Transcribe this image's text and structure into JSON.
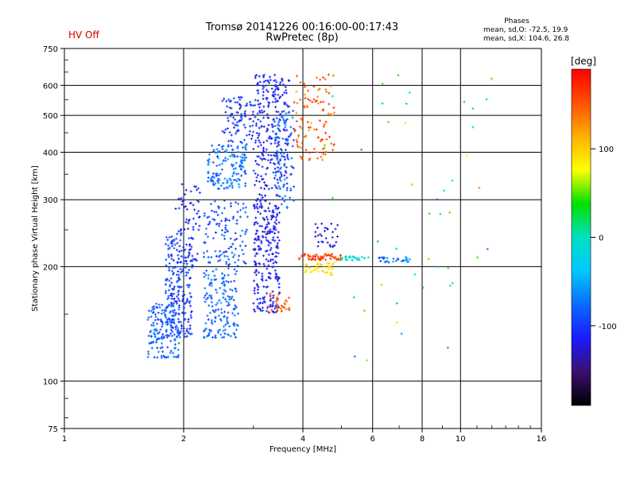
{
  "header": {
    "status": "HV Off",
    "title_line1": "Tromsø 20141226 00:16:00-00:17:43",
    "title_line2": "RwPretec (8p)"
  },
  "stats": {
    "title": "Phases",
    "line_o": "mean, sd,O: -72.5, 19.9",
    "line_x": "mean, sd,X: 104.6, 26.8"
  },
  "colorbar": {
    "unit": "[deg]",
    "colors": [
      "#000000",
      "#3c0f6e",
      "#1a1aff",
      "#0a6cff",
      "#00c8ff",
      "#00e0c0",
      "#00e000",
      "#ffff00",
      "#ffb000",
      "#ff5000",
      "#ff0000"
    ],
    "ticks": [
      {
        "value": -100,
        "label": "-100"
      },
      {
        "value": 0,
        "label": "0"
      },
      {
        "value": 100,
        "label": "100"
      }
    ],
    "range": [
      -190,
      190
    ]
  },
  "chart_data": {
    "type": "scatter",
    "xlabel": "Frequency [MHz]",
    "ylabel": "Stationary phase Virtual Height [km]",
    "xscale": "log",
    "yscale": "log",
    "xlim": [
      1,
      16
    ],
    "ylim": [
      75,
      750
    ],
    "grid": true,
    "xticks": [
      {
        "value": 1,
        "label": "1"
      },
      {
        "value": 2,
        "label": "2"
      },
      {
        "value": 4,
        "label": "4"
      },
      {
        "value": 6,
        "label": "6"
      },
      {
        "value": 8,
        "label": "8"
      },
      {
        "value": 10,
        "label": "10"
      },
      {
        "value": 16,
        "label": "16"
      }
    ],
    "yticks": [
      {
        "value": 75,
        "label": "75"
      },
      {
        "value": 100,
        "label": "100"
      },
      {
        "value": 200,
        "label": "200"
      },
      {
        "value": 300,
        "label": "300"
      },
      {
        "value": 400,
        "label": "400"
      },
      {
        "value": 500,
        "label": "500"
      },
      {
        "value": 600,
        "label": "600"
      },
      {
        "value": 750,
        "label": "750"
      }
    ],
    "clusters": [
      {
        "f": [
          1.62,
          1.95
        ],
        "h": [
          115,
          160
        ],
        "phase": -85,
        "spread": 25,
        "n": 160
      },
      {
        "f": [
          1.8,
          2.1
        ],
        "h": [
          130,
          240
        ],
        "phase": -95,
        "spread": 25,
        "n": 220
      },
      {
        "f": [
          1.9,
          2.2
        ],
        "h": [
          200,
          330
        ],
        "phase": -110,
        "spread": 20,
        "n": 70
      },
      {
        "f": [
          2.25,
          2.75
        ],
        "h": [
          130,
          200
        ],
        "phase": -80,
        "spread": 25,
        "n": 160
      },
      {
        "f": [
          2.25,
          2.9
        ],
        "h": [
          200,
          300
        ],
        "phase": -90,
        "spread": 25,
        "n": 120
      },
      {
        "f": [
          2.3,
          2.9
        ],
        "h": [
          320,
          420
        ],
        "phase": -75,
        "spread": 25,
        "n": 150
      },
      {
        "f": [
          2.5,
          3.0
        ],
        "h": [
          420,
          560
        ],
        "phase": -100,
        "spread": 25,
        "n": 90
      },
      {
        "f": [
          3.0,
          3.5
        ],
        "h": [
          150,
          310
        ],
        "phase": -115,
        "spread": 15,
        "n": 260
      },
      {
        "f": [
          3.0,
          3.7
        ],
        "h": [
          320,
          640
        ],
        "phase": -110,
        "spread": 20,
        "n": 260
      },
      {
        "f": [
          3.4,
          3.8
        ],
        "h": [
          280,
          520
        ],
        "phase": -80,
        "spread": 25,
        "n": 90
      },
      {
        "f": [
          3.25,
          3.7
        ],
        "h": [
          150,
          170
        ],
        "phase": 150,
        "spread": 20,
        "n": 30
      },
      {
        "f": [
          3.8,
          4.8
        ],
        "h": [
          380,
          640
        ],
        "phase": 145,
        "spread": 30,
        "n": 110
      },
      {
        "f": [
          3.9,
          5.0
        ],
        "h": [
          208,
          216
        ],
        "phase": 160,
        "spread": 25,
        "n": 60
      },
      {
        "f": [
          4.0,
          4.8
        ],
        "h": [
          190,
          205
        ],
        "phase": 90,
        "spread": 20,
        "n": 40
      },
      {
        "f": [
          4.3,
          4.9
        ],
        "h": [
          225,
          260
        ],
        "phase": -120,
        "spread": 20,
        "n": 30
      },
      {
        "f": [
          5.0,
          5.9
        ],
        "h": [
          208,
          213
        ],
        "phase": -10,
        "spread": 25,
        "n": 25
      },
      {
        "f": [
          6.2,
          7.6
        ],
        "h": [
          205,
          212
        ],
        "phase": -80,
        "spread": 40,
        "n": 30
      },
      {
        "f": [
          4.5,
          12
        ],
        "h": [
          110,
          650
        ],
        "phase": 20,
        "spread": 110,
        "n": 45
      }
    ]
  }
}
